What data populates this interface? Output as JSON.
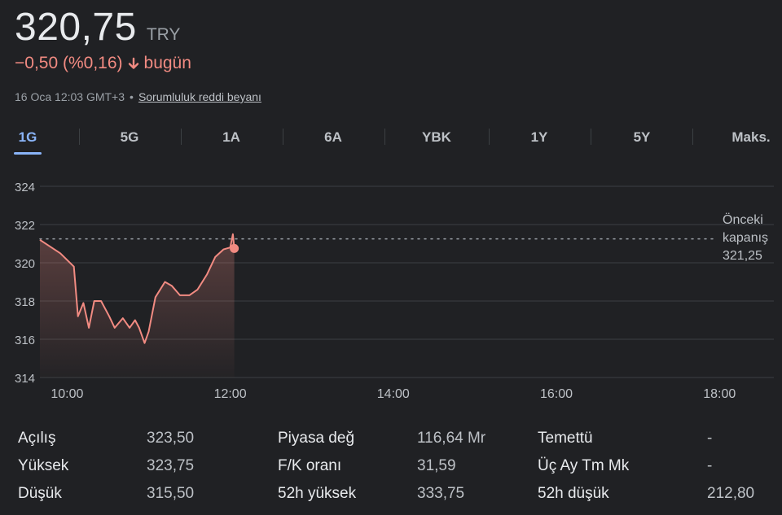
{
  "quote": {
    "price": "320,75",
    "currency": "TRY",
    "change": "−0,50 (%0,16)",
    "change_suffix": "bugün",
    "timestamp": "16 Oca 12:03 GMT+3",
    "separator": "•",
    "disclaimer_link": "Sorumluluk reddi beyanı",
    "colors": {
      "negative": "#f28b82",
      "accent": "#8ab4f8"
    }
  },
  "tabs": [
    {
      "label": "1G",
      "active": true
    },
    {
      "label": "5G",
      "active": false
    },
    {
      "label": "1A",
      "active": false
    },
    {
      "label": "6A",
      "active": false
    },
    {
      "label": "YBK",
      "active": false
    },
    {
      "label": "1Y",
      "active": false
    },
    {
      "label": "5Y",
      "active": false
    },
    {
      "label": "Maks.",
      "active": false
    }
  ],
  "chart_data": {
    "type": "line",
    "x_ticks": [
      "10:00",
      "12:00",
      "14:00",
      "16:00",
      "18:00"
    ],
    "y_ticks": [
      "324",
      "322",
      "320",
      "318",
      "316",
      "314"
    ],
    "ylim": [
      314,
      324
    ],
    "xlim": [
      "09:40",
      "18:40"
    ],
    "grid": true,
    "previous_close": {
      "label_lines": [
        "Önceki",
        "kapanış",
        "321,25"
      ],
      "value": 321.25
    },
    "series": [
      {
        "x": [
          "09:40",
          "09:55",
          "10:05",
          "10:08",
          "10:12",
          "10:16",
          "10:20",
          "10:25",
          "10:31",
          "10:35",
          "10:41",
          "10:46",
          "10:50",
          "10:53",
          "10:57",
          "11:00",
          "11:05",
          "11:12",
          "11:17",
          "11:23",
          "11:30",
          "11:36",
          "11:43",
          "11:49",
          "11:55",
          "12:00",
          "12:02",
          "12:03"
        ],
        "y": [
          321.2,
          320.5,
          319.8,
          317.2,
          317.9,
          316.6,
          318.0,
          318.0,
          317.2,
          316.6,
          317.1,
          316.6,
          317.0,
          316.6,
          315.8,
          316.4,
          318.2,
          319.0,
          318.8,
          318.3,
          318.3,
          318.6,
          319.4,
          320.3,
          320.7,
          320.8,
          321.5,
          320.75
        ]
      }
    ],
    "last_point": {
      "x": "12:03",
      "y": 320.75
    }
  },
  "stats": {
    "col1": [
      {
        "label": "Açılış",
        "value": "323,50"
      },
      {
        "label": "Yüksek",
        "value": "323,75"
      },
      {
        "label": "Düşük",
        "value": "315,50"
      }
    ],
    "col2": [
      {
        "label": "Piyasa değ",
        "value": "116,64 Mr"
      },
      {
        "label": "F/K oranı",
        "value": "31,59"
      },
      {
        "label": "52h yüksek",
        "value": "333,75"
      }
    ],
    "col3": [
      {
        "label": "Temettü",
        "value": "-"
      },
      {
        "label": "Üç Ay Tm Mk",
        "value": "-"
      },
      {
        "label": "52h düşük",
        "value": "212,80"
      }
    ]
  }
}
